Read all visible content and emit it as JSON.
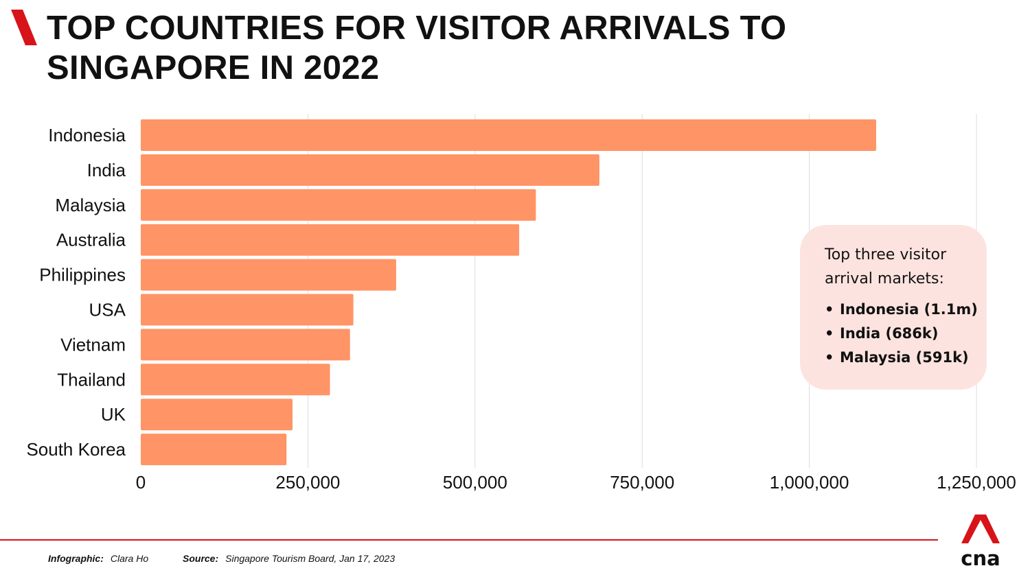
{
  "header": {
    "title": "TOP COUNTRIES FOR VISITOR ARRIVALS TO SINGAPORE IN 2022",
    "accent_color": "#d7141a"
  },
  "chart_data": {
    "type": "bar",
    "orientation": "horizontal",
    "categories": [
      "Indonesia",
      "India",
      "Malaysia",
      "Australia",
      "Philippines",
      "USA",
      "Vietnam",
      "Thailand",
      "UK",
      "South Korea"
    ],
    "values": [
      1100000,
      686000,
      591000,
      566000,
      382000,
      318000,
      313000,
      283000,
      227000,
      218000
    ],
    "xlim": [
      0,
      1250000
    ],
    "xticks": [
      "0",
      "250,000",
      "500,000",
      "750,000",
      "1,000,000",
      "1,250,000"
    ],
    "grid": "vertical",
    "bar_color": "#ff9466"
  },
  "callout": {
    "heading_line1": "Top three visitor",
    "heading_line2": "arrival markets:",
    "items": [
      "Indonesia (1.1m)",
      "India (686k)",
      "Malaysia (591k)"
    ],
    "background": "#fde3df"
  },
  "footer": {
    "infographic_label": "Infographic:",
    "infographic_value": "Clara Ho",
    "source_label": "Source:",
    "source_value": "Singapore Tourism Board, Jan 17, 2023",
    "logo_text": "cna"
  }
}
